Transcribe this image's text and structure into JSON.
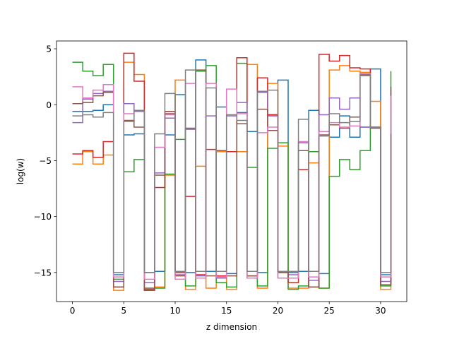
{
  "chart_data": {
    "type": "line",
    "step": "post",
    "title": "",
    "xlabel": "z dimension",
    "ylabel": "log(w)",
    "xlim": [
      -1.55,
      32.55
    ],
    "ylim": [
      -17.6,
      5.7
    ],
    "xticks": [
      0,
      5,
      10,
      15,
      20,
      25,
      30
    ],
    "yticks": [
      5,
      0,
      -5,
      -10,
      -15
    ],
    "ytick_labels": [
      "5",
      "0",
      "−5",
      "−10",
      "−15"
    ],
    "grid": false,
    "legend": "none",
    "x": [
      0,
      1,
      2,
      3,
      4,
      5,
      6,
      7,
      8,
      9,
      10,
      11,
      12,
      13,
      14,
      15,
      16,
      17,
      18,
      19,
      20,
      21,
      22,
      23,
      24,
      25,
      26,
      27,
      28,
      29,
      30,
      31
    ],
    "series": [
      {
        "color": "#1f77b4",
        "values": [
          -0.6,
          -0.6,
          -0.5,
          0.0,
          -15.2,
          -2.7,
          -2.6,
          -15.0,
          -14.9,
          -2.7,
          0.9,
          -15.0,
          4.0,
          -14.9,
          -0.2,
          -15.1,
          -0.7,
          -2.4,
          -15.0,
          -0.9,
          2.2,
          -15.0,
          -14.9,
          -0.5,
          -15.1,
          -2.9,
          -1.0,
          -2.9,
          -2.0,
          3.2,
          -15.2,
          0.0
        ]
      },
      {
        "color": "#ff7f0e",
        "values": [
          -5.3,
          -4.2,
          -5.3,
          -4.5,
          -16.6,
          3.8,
          2.7,
          -16.6,
          -16.3,
          -6.3,
          2.2,
          -16.5,
          -5.5,
          -16.4,
          -4.2,
          -16.5,
          -4.2,
          3.6,
          -16.4,
          1.9,
          -3.7,
          -16.4,
          -16.4,
          -5.2,
          -16.4,
          3.1,
          3.5,
          3.0,
          2.9,
          0.3,
          -16.5,
          -2.7
        ]
      },
      {
        "color": "#2ca02c",
        "values": [
          3.8,
          3.0,
          2.6,
          3.6,
          -15.6,
          -6.0,
          -4.9,
          -16.5,
          -16.4,
          -6.2,
          -3.1,
          -16.2,
          3.0,
          3.5,
          -15.9,
          -16.3,
          3.7,
          -5.6,
          -16.2,
          -3.9,
          -3.4,
          -16.5,
          -16.2,
          -4.2,
          -16.4,
          -6.4,
          -4.9,
          -5.8,
          -4.1,
          -2.0,
          -16.2,
          3.0
        ]
      },
      {
        "color": "#d62728",
        "values": [
          -4.4,
          -4.1,
          -4.7,
          -3.3,
          -16.3,
          4.6,
          2.1,
          -16.6,
          -7.4,
          -0.6,
          -15.0,
          -8.2,
          -15.2,
          -4.0,
          -15.3,
          -4.2,
          4.2,
          -15.3,
          2.4,
          -0.9,
          -15.0,
          -15.9,
          -5.8,
          -16.3,
          4.5,
          3.9,
          4.4,
          3.3,
          3.2,
          -2.0,
          -16.1,
          -2.6
        ]
      },
      {
        "color": "#9467bd",
        "values": [
          -1.6,
          0.5,
          1.0,
          1.2,
          -15.8,
          0.1,
          -0.6,
          -15.9,
          -6.1,
          -1.2,
          -15.2,
          -2.2,
          -15.3,
          -1.0,
          -15.5,
          -1.0,
          0.2,
          -15.5,
          1.1,
          -1.0,
          -15.5,
          -15.2,
          -3.4,
          -15.7,
          -0.9,
          0.6,
          -0.4,
          0.6,
          -2.0,
          -2.0,
          -15.8,
          1.6
        ]
      },
      {
        "color": "#8c564b",
        "values": [
          0.1,
          0.2,
          0.8,
          1.1,
          -16.3,
          -1.4,
          -2.0,
          -16.4,
          -6.3,
          -0.8,
          -15.3,
          -2.1,
          3.1,
          -15.3,
          -4.1,
          -15.3,
          -1.7,
          -15.3,
          -0.4,
          -2.3,
          -15.0,
          -15.5,
          -4.1,
          -16.3,
          -2.7,
          -1.8,
          -2.1,
          -1.1,
          2.6,
          -2.1,
          -16.1,
          1.6
        ]
      },
      {
        "color": "#e377c2",
        "values": [
          1.6,
          0.6,
          1.3,
          1.8,
          -15.4,
          -0.8,
          -0.5,
          -15.6,
          -3.8,
          -0.9,
          -15.6,
          1.9,
          -15.5,
          1.9,
          -15.4,
          1.4,
          -0.8,
          -15.5,
          -2.5,
          -2.0,
          -15.5,
          -15.5,
          -3.3,
          -15.4,
          -2.4,
          -1.6,
          -2.0,
          -1.9,
          2.8,
          -2.0,
          -15.4,
          0.8
        ]
      },
      {
        "color": "#7f7f7f",
        "values": [
          -1.0,
          -0.9,
          -1.1,
          -0.7,
          -15.0,
          -1.5,
          -0.5,
          -15.0,
          -2.6,
          1.0,
          -14.9,
          3.1,
          -14.9,
          1.5,
          -14.9,
          -0.9,
          -1.4,
          -14.9,
          1.2,
          1.3,
          -14.9,
          -14.9,
          -1.3,
          -14.9,
          -2.8,
          -0.8,
          -1.6,
          -1.5,
          2.7,
          -2.0,
          -15.0,
          -2.6
        ]
      }
    ]
  }
}
